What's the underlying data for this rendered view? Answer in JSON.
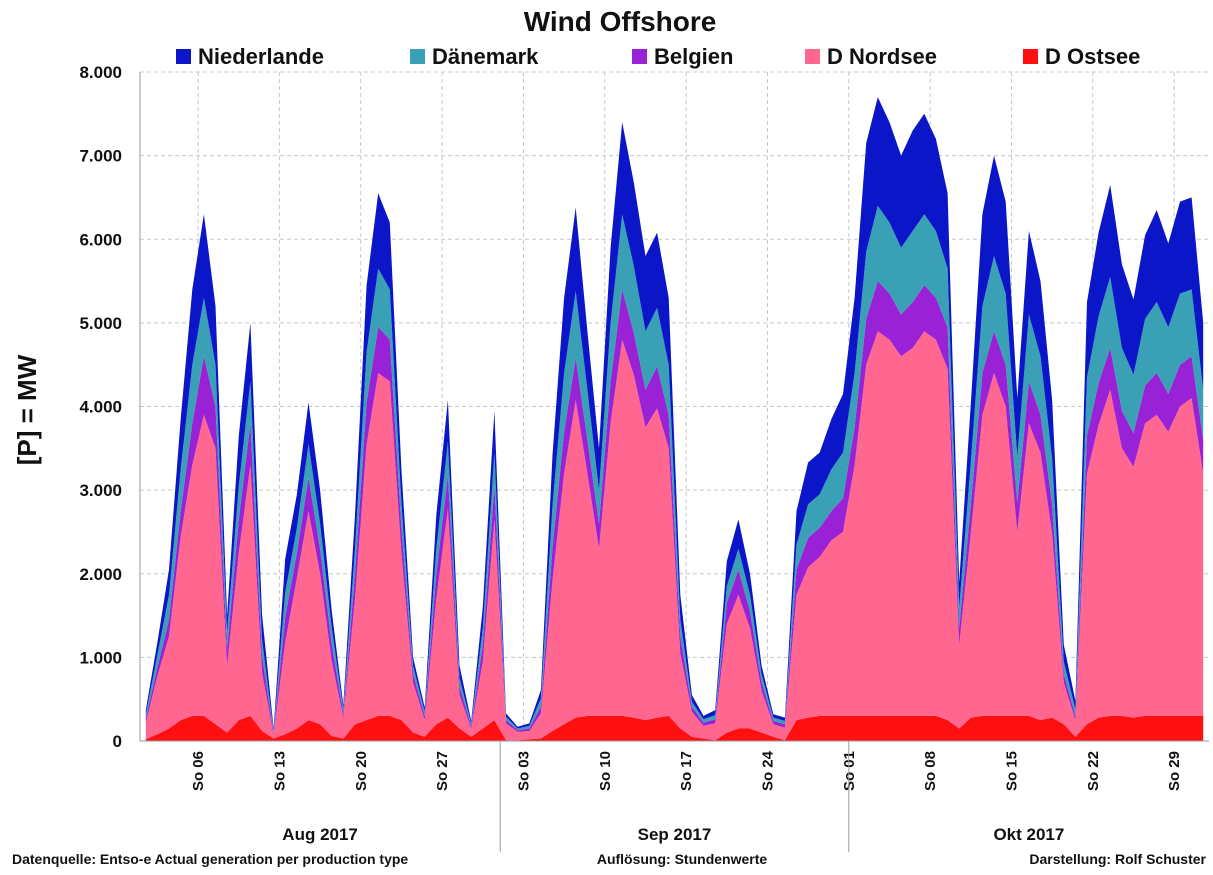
{
  "chart_data": {
    "type": "area",
    "stacked": true,
    "title": "Wind Offshore",
    "ylabel": "[P]   = MW",
    "ylim": [
      0,
      8000
    ],
    "yticks": [
      "0",
      "1.000",
      "2.000",
      "3.000",
      "4.000",
      "5.000",
      "6.000",
      "7.000",
      "8.000"
    ],
    "grid": true,
    "legend_position": "top",
    "x_start": "2017-08-01",
    "x_end": "2017-10-31",
    "xticks": [
      {
        "date": "2017-08-06",
        "label": "So 06"
      },
      {
        "date": "2017-08-13",
        "label": "So 13"
      },
      {
        "date": "2017-08-20",
        "label": "So 20"
      },
      {
        "date": "2017-08-27",
        "label": "So 27"
      },
      {
        "date": "2017-09-03",
        "label": "So 03"
      },
      {
        "date": "2017-09-10",
        "label": "So 10"
      },
      {
        "date": "2017-09-17",
        "label": "So 17"
      },
      {
        "date": "2017-09-24",
        "label": "So 24"
      },
      {
        "date": "2017-10-01",
        "label": "So 01"
      },
      {
        "date": "2017-10-08",
        "label": "So 08"
      },
      {
        "date": "2017-10-15",
        "label": "So 15"
      },
      {
        "date": "2017-10-22",
        "label": "So 22"
      },
      {
        "date": "2017-10-29",
        "label": "So 29"
      }
    ],
    "months": [
      {
        "label": "Aug 2017",
        "start": "2017-08-01",
        "end": "2017-08-31"
      },
      {
        "label": "Sep 2017",
        "start": "2017-09-01",
        "end": "2017-09-30"
      },
      {
        "label": "Okt 2017",
        "start": "2017-10-01",
        "end": "2017-10-31"
      }
    ],
    "x": [
      "2017-08-01",
      "2017-08-02",
      "2017-08-03",
      "2017-08-04",
      "2017-08-05",
      "2017-08-06",
      "2017-08-07",
      "2017-08-08",
      "2017-08-09",
      "2017-08-10",
      "2017-08-11",
      "2017-08-12",
      "2017-08-13",
      "2017-08-14",
      "2017-08-15",
      "2017-08-16",
      "2017-08-17",
      "2017-08-18",
      "2017-08-19",
      "2017-08-20",
      "2017-08-21",
      "2017-08-22",
      "2017-08-23",
      "2017-08-24",
      "2017-08-25",
      "2017-08-26",
      "2017-08-27",
      "2017-08-28",
      "2017-08-29",
      "2017-08-30",
      "2017-08-31",
      "2017-09-01",
      "2017-09-02",
      "2017-09-03",
      "2017-09-04",
      "2017-09-05",
      "2017-09-06",
      "2017-09-07",
      "2017-09-08",
      "2017-09-09",
      "2017-09-10",
      "2017-09-11",
      "2017-09-12",
      "2017-09-13",
      "2017-09-14",
      "2017-09-15",
      "2017-09-16",
      "2017-09-17",
      "2017-09-18",
      "2017-09-19",
      "2017-09-20",
      "2017-09-21",
      "2017-09-22",
      "2017-09-23",
      "2017-09-24",
      "2017-09-25",
      "2017-09-26",
      "2017-09-27",
      "2017-09-28",
      "2017-09-29",
      "2017-09-30",
      "2017-10-01",
      "2017-10-02",
      "2017-10-03",
      "2017-10-04",
      "2017-10-05",
      "2017-10-06",
      "2017-10-07",
      "2017-10-08",
      "2017-10-09",
      "2017-10-10",
      "2017-10-11",
      "2017-10-12",
      "2017-10-13",
      "2017-10-14",
      "2017-10-15",
      "2017-10-16",
      "2017-10-17",
      "2017-10-18",
      "2017-10-19",
      "2017-10-20",
      "2017-10-21",
      "2017-10-22",
      "2017-10-23",
      "2017-10-24",
      "2017-10-25",
      "2017-10-26",
      "2017-10-27",
      "2017-10-28",
      "2017-10-29",
      "2017-10-30",
      "2017-10-31"
    ],
    "series": [
      {
        "name": "D Ostsee",
        "color": "#ff1010",
        "values": [
          20,
          80,
          150,
          250,
          300,
          300,
          200,
          100,
          250,
          300,
          120,
          30,
          80,
          150,
          250,
          200,
          60,
          30,
          200,
          250,
          300,
          300,
          250,
          100,
          50,
          200,
          280,
          150,
          50,
          150,
          250,
          10,
          10,
          20,
          30,
          120,
          200,
          280,
          300,
          300,
          300,
          300,
          280,
          250,
          280,
          300,
          150,
          50,
          30,
          10,
          100,
          150,
          150,
          100,
          50,
          10,
          250,
          280,
          300,
          300,
          300,
          300,
          300,
          300,
          300,
          300,
          300,
          300,
          300,
          250,
          150,
          280,
          300,
          300,
          300,
          300,
          300,
          250,
          280,
          200,
          50,
          200,
          280,
          300,
          300,
          280,
          300,
          300,
          300,
          300,
          300,
          300
        ]
      },
      {
        "name": "D Nordsee",
        "color": "#ff6690",
        "values": [
          200,
          700,
          1100,
          2200,
          3000,
          3600,
          3300,
          800,
          2000,
          3000,
          700,
          50,
          1100,
          1800,
          2500,
          1800,
          900,
          250,
          1500,
          3300,
          4100,
          4000,
          2000,
          600,
          200,
          1500,
          2500,
          400,
          100,
          800,
          2400,
          200,
          100,
          100,
          300,
          1800,
          3000,
          3800,
          2900,
          2000,
          3500,
          4500,
          4100,
          3500,
          3700,
          3200,
          900,
          300,
          150,
          200,
          1300,
          1600,
          1200,
          500,
          150,
          150,
          1500,
          1800,
          1900,
          2100,
          2200,
          3000,
          4200,
          4600,
          4500,
          4300,
          4400,
          4600,
          4500,
          4200,
          1000,
          2200,
          3600,
          4100,
          3700,
          2200,
          3500,
          3200,
          2200,
          500,
          200,
          3000,
          3500,
          3900,
          3200,
          3000,
          3500,
          3600,
          3400,
          3700,
          3800,
          2900
        ]
      },
      {
        "name": "Belgien",
        "color": "#9a22d6",
        "values": [
          50,
          100,
          200,
          300,
          500,
          700,
          500,
          200,
          400,
          500,
          200,
          20,
          300,
          300,
          400,
          300,
          200,
          50,
          300,
          500,
          550,
          500,
          300,
          100,
          50,
          300,
          400,
          100,
          30,
          200,
          400,
          40,
          20,
          30,
          80,
          400,
          500,
          500,
          400,
          300,
          500,
          600,
          500,
          450,
          500,
          400,
          200,
          60,
          40,
          50,
          250,
          300,
          200,
          100,
          40,
          40,
          300,
          350,
          350,
          350,
          400,
          450,
          550,
          600,
          550,
          500,
          550,
          550,
          500,
          500,
          200,
          350,
          500,
          500,
          500,
          350,
          500,
          450,
          350,
          100,
          50,
          450,
          500,
          500,
          450,
          400,
          450,
          500,
          450,
          500,
          500,
          400
        ]
      },
      {
        "name": "Dänemark",
        "color": "#3aa0b5",
        "values": [
          50,
          150,
          300,
          500,
          700,
          700,
          500,
          200,
          400,
          500,
          200,
          20,
          300,
          300,
          400,
          300,
          200,
          50,
          300,
          600,
          700,
          600,
          300,
          100,
          50,
          300,
          400,
          100,
          30,
          200,
          400,
          40,
          20,
          30,
          100,
          500,
          700,
          800,
          600,
          400,
          700,
          900,
          800,
          700,
          700,
          600,
          200,
          60,
          40,
          50,
          200,
          250,
          200,
          100,
          40,
          40,
          300,
          400,
          400,
          500,
          550,
          650,
          800,
          900,
          850,
          800,
          850,
          850,
          800,
          700,
          250,
          500,
          800,
          900,
          850,
          550,
          800,
          700,
          550,
          150,
          80,
          700,
          800,
          850,
          750,
          700,
          800,
          850,
          800,
          850,
          800,
          600
        ]
      },
      {
        "name": "Niederlande",
        "color": "#0b16c8",
        "values": [
          50,
          150,
          300,
          600,
          900,
          1000,
          700,
          200,
          600,
          700,
          300,
          30,
          400,
          400,
          500,
          400,
          200,
          50,
          400,
          800,
          900,
          800,
          400,
          100,
          50,
          400,
          500,
          150,
          30,
          250,
          500,
          40,
          20,
          30,
          100,
          600,
          900,
          1000,
          700,
          500,
          900,
          1100,
          1000,
          900,
          900,
          800,
          300,
          80,
          40,
          60,
          300,
          350,
          250,
          100,
          40,
          40,
          400,
          500,
          500,
          600,
          700,
          900,
          1300,
          1300,
          1200,
          1100,
          1200,
          1200,
          1100,
          900,
          300,
          700,
          1100,
          1200,
          1100,
          700,
          1000,
          900,
          700,
          200,
          100,
          900,
          1000,
          1100,
          1000,
          900,
          1000,
          1100,
          1000,
          1100,
          1100,
          800
        ]
      }
    ]
  },
  "footer": {
    "left": "Datenquelle: Entso-e  Actual generation per production type",
    "center": "Auflösung: Stundenwerte",
    "right": "Darstellung:  Rolf Schuster"
  }
}
